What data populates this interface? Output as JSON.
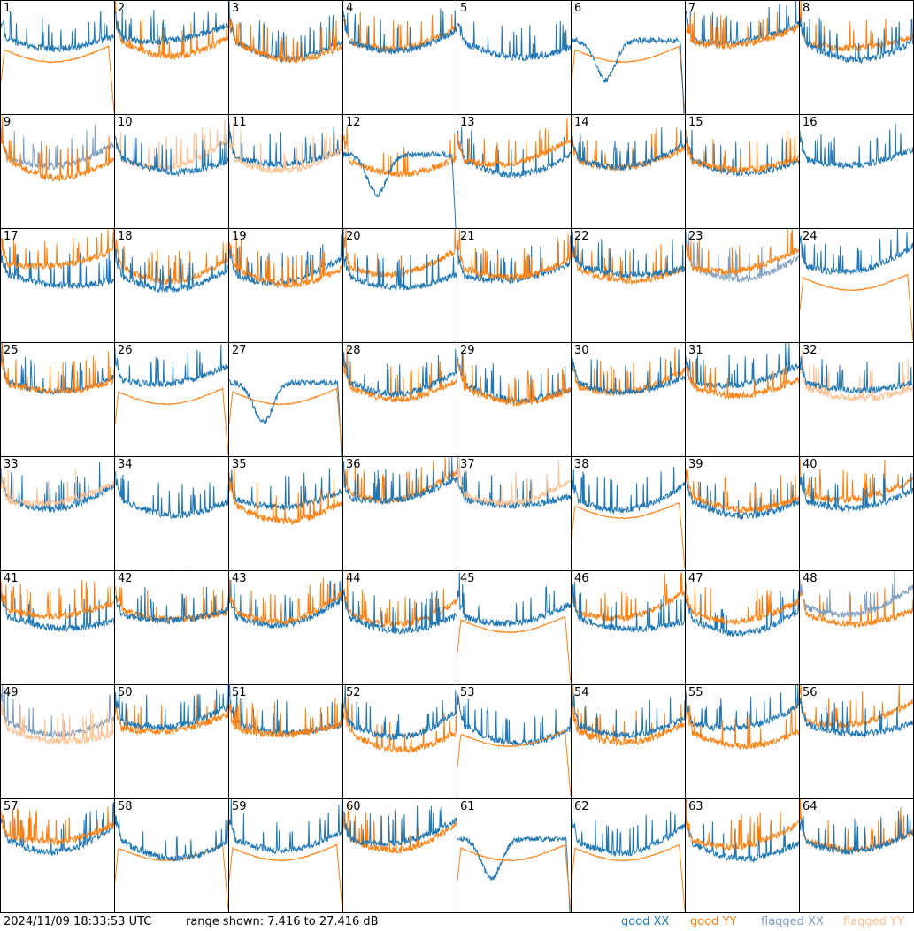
{
  "chart_data": {
    "type": "line",
    "panels": [
      "1",
      "2",
      "3",
      "4",
      "5",
      "6",
      "7",
      "8",
      "9",
      "10",
      "11",
      "12",
      "13",
      "14",
      "15",
      "16",
      "17",
      "18",
      "19",
      "20",
      "21",
      "22",
      "23",
      "24",
      "25",
      "26",
      "27",
      "28",
      "29",
      "30",
      "31",
      "32",
      "33",
      "34",
      "35",
      "36",
      "37",
      "38",
      "39",
      "40",
      "41",
      "42",
      "43",
      "44",
      "45",
      "46",
      "47",
      "48",
      "49",
      "50",
      "51",
      "52",
      "53",
      "54",
      "55",
      "56",
      "57",
      "58",
      "59",
      "60",
      "61",
      "62",
      "63",
      "64"
    ],
    "ylim": [
      7.416,
      27.416
    ],
    "legend": [
      {
        "name": "good XX",
        "color": "#1f77b4"
      },
      {
        "name": "good YY",
        "color": "#ff7f0e"
      },
      {
        "name": "flagged XX",
        "color": "#7f9fbf"
      },
      {
        "name": "flagged YY",
        "color": "#ffc090"
      }
    ],
    "flags": {
      "xx_flagged": [
        "9",
        "23",
        "48",
        "49"
      ],
      "yy_flagged": [
        "10",
        "11",
        "16",
        "32",
        "33",
        "37",
        "49"
      ]
    },
    "legend_placement": "bottom-right"
  },
  "footer": {
    "timestamp": "2024/11/09 18:33:53 UTC",
    "range_text": "range shown: 7.416 to 27.416 dB"
  }
}
